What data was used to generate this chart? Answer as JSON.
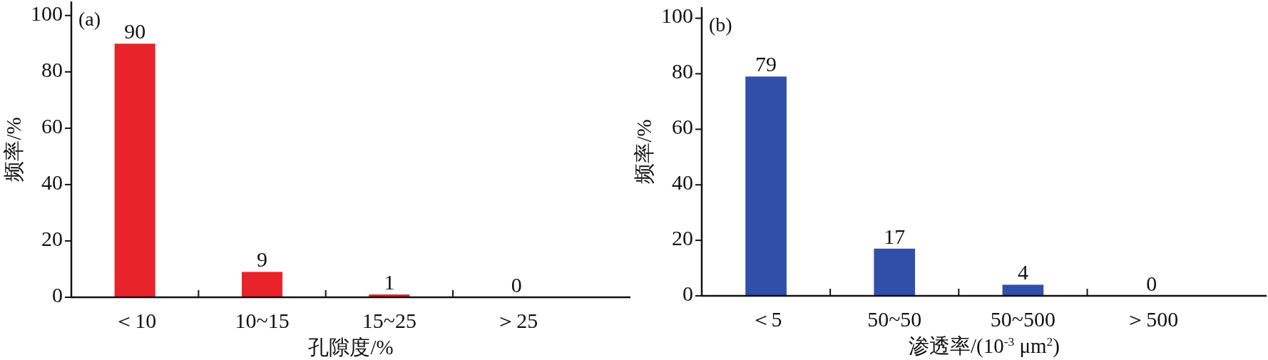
{
  "chart_data": [
    {
      "type": "bar",
      "title": "(a)",
      "xlabel": "孔隙度/%",
      "ylabel": "频率/%",
      "categories": [
        "＜10",
        "10~15",
        "15~25",
        "＞25"
      ],
      "values": [
        90,
        9,
        1,
        0
      ],
      "color": "#e8232a",
      "ylim": [
        0,
        105
      ],
      "yticks": [
        0,
        20,
        40,
        60,
        80,
        100
      ],
      "data_labels": true
    },
    {
      "type": "bar",
      "title": "(b)",
      "xlabel": "渗透率/(10$^{-3}$ μm$^{2}$)",
      "ylabel": "频率/%",
      "categories": [
        "＜5",
        "50~50",
        "50~500",
        "＞500"
      ],
      "values": [
        79,
        17,
        4,
        0
      ],
      "color": "#2f4fa8",
      "ylim": [
        0,
        104
      ],
      "yticks": [
        0,
        20,
        40,
        60,
        80,
        100
      ],
      "data_labels": true
    }
  ]
}
